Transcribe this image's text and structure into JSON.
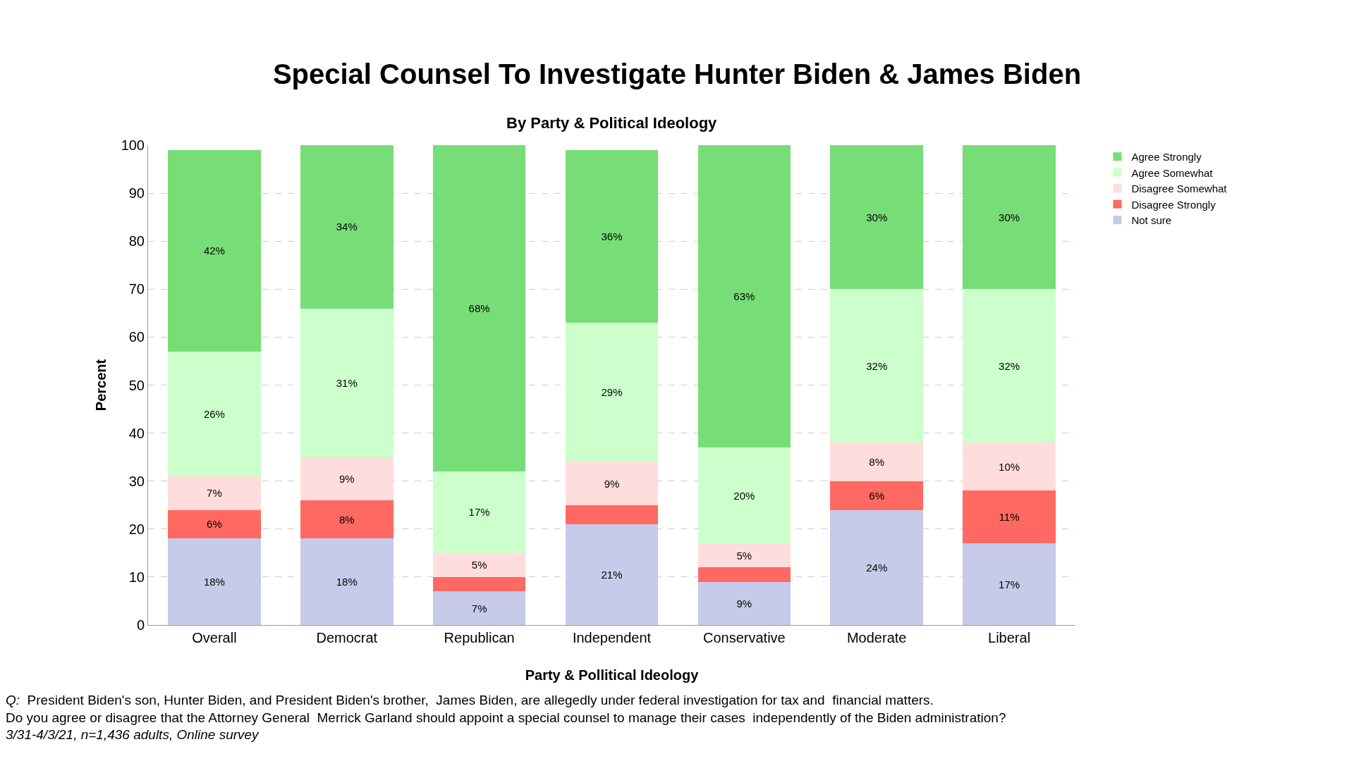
{
  "chart_data": {
    "type": "bar",
    "stacked": true,
    "title": "Special Counsel To Investigate Hunter Biden & James Biden",
    "subtitle": "By Party & Political Ideology",
    "xlabel": "Party & Pollitical Ideology",
    "ylabel": "Percent",
    "categories": [
      "Overall",
      "Democrat",
      "Republican",
      "Independent",
      "Conservative",
      "Moderate",
      "Liberal"
    ],
    "series": [
      {
        "name": "Not sure",
        "color": "#c5cbe8",
        "values": [
          18,
          18,
          7,
          21,
          9,
          24,
          17
        ],
        "value_labels": [
          "18%",
          "18%",
          "7%",
          "21%",
          "9%",
          "24%",
          "17%"
        ]
      },
      {
        "name": "Disagree Strongly",
        "color": "#ff6961",
        "values": [
          6,
          8,
          3,
          4,
          3,
          6,
          11
        ],
        "value_labels": [
          "6%",
          "8%",
          null,
          null,
          null,
          "6%",
          "11%"
        ]
      },
      {
        "name": "Disagree Somewhat",
        "color": "#ffdddd",
        "values": [
          7,
          9,
          5,
          9,
          5,
          8,
          10
        ],
        "value_labels": [
          "7%",
          "9%",
          "5%",
          "9%",
          "5%",
          "8%",
          "10%"
        ]
      },
      {
        "name": "Agree Somewhat",
        "color": "#ccffcc",
        "values": [
          26,
          31,
          17,
          29,
          20,
          32,
          32
        ],
        "value_labels": [
          "26%",
          "31%",
          "17%",
          "29%",
          "20%",
          "32%",
          "32%"
        ]
      },
      {
        "name": "Agree Strongly",
        "color": "#77dd77",
        "values": [
          42,
          34,
          68,
          36,
          63,
          30,
          30
        ],
        "value_labels": [
          "42%",
          "34%",
          "68%",
          "36%",
          "63%",
          "30%",
          "30%"
        ]
      }
    ],
    "ylim": [
      0,
      100
    ],
    "yticks": [
      0,
      10,
      20,
      30,
      40,
      50,
      60,
      70,
      80,
      90,
      100
    ],
    "grid": "y",
    "legend": "top right",
    "annotations": [
      "Q:  President Biden's son, Hunter Biden, and President Biden's brother,  James Biden, are allegedly under federal investigation for tax and  financial matters.",
      "Do you agree or disagree that the Attorney General  Merrick Garland should appoint a special counsel to manage their cases  independently of the Biden administration?",
      "3/31-4/3/21, n=1,436 adults, Online survey"
    ]
  }
}
